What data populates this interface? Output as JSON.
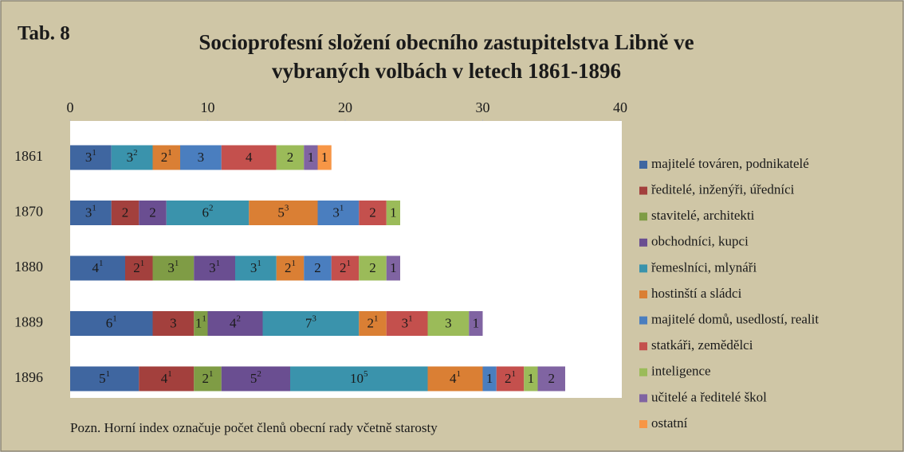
{
  "chart_data": {
    "type": "stacked-bar-horizontal",
    "tag": "Tab. 8",
    "title": [
      "Socioprofesní složení obecního zastupitelstva Libně ve",
      "vybraných volbách v letech 1861-1896"
    ],
    "note": "Pozn. Horní index označuje počet členů obecní rady včetně starosty",
    "categories": [
      "1861",
      "1870",
      "1880",
      "1889",
      "1896"
    ],
    "xlim": [
      0,
      40
    ],
    "xticks": [
      0,
      10,
      20,
      30,
      40
    ],
    "legend": "right",
    "series": [
      {
        "name": "majitelé továren, podnikatelé",
        "color": "#3F66A0",
        "values": [
          3,
          3,
          4,
          6,
          5
        ],
        "council": [
          1,
          1,
          1,
          1,
          1
        ]
      },
      {
        "name": "ředitelé, inženýři, úředníci",
        "color": "#A3403D",
        "values": [
          null,
          2,
          2,
          3,
          4
        ],
        "council": [
          null,
          null,
          1,
          null,
          1
        ]
      },
      {
        "name": "stavitelé, architekti",
        "color": "#7F9C45",
        "values": [
          null,
          null,
          3,
          1,
          2
        ],
        "council": [
          null,
          null,
          1,
          1,
          1
        ]
      },
      {
        "name": "obchodníci, kupci",
        "color": "#6A4E91",
        "values": [
          null,
          2,
          3,
          4,
          5
        ],
        "council": [
          null,
          null,
          1,
          2,
          2
        ]
      },
      {
        "name": "řemeslníci, mlynáři",
        "color": "#3A93AC",
        "values": [
          3,
          6,
          3,
          7,
          10
        ],
        "council": [
          2,
          2,
          1,
          3,
          5
        ]
      },
      {
        "name": "hostinští a sládci",
        "color": "#DA7F34",
        "values": [
          2,
          5,
          2,
          2,
          4
        ],
        "council": [
          1,
          3,
          1,
          1,
          1
        ]
      },
      {
        "name": "majitelé domů, usedlostí, realit",
        "color": "#4A7EBF",
        "values": [
          3,
          3,
          2,
          null,
          1
        ],
        "council": [
          null,
          1,
          null,
          null,
          null
        ]
      },
      {
        "name": "statkáři, zemědělci",
        "color": "#C4504D",
        "values": [
          4,
          2,
          2,
          3,
          2
        ],
        "council": [
          null,
          null,
          1,
          1,
          1
        ]
      },
      {
        "name": "inteligence",
        "color": "#9BBB59",
        "values": [
          2,
          1,
          2,
          3,
          1
        ],
        "council": [
          null,
          null,
          null,
          null,
          null
        ]
      },
      {
        "name": "učitelé a ředitelé škol",
        "color": "#8064A2",
        "values": [
          1,
          null,
          1,
          1,
          2
        ],
        "council": [
          null,
          null,
          null,
          null,
          null
        ]
      },
      {
        "name": "ostatní",
        "color": "#F79646",
        "values": [
          1,
          null,
          null,
          null,
          null
        ],
        "council": [
          null,
          null,
          null,
          null,
          null
        ]
      }
    ]
  }
}
